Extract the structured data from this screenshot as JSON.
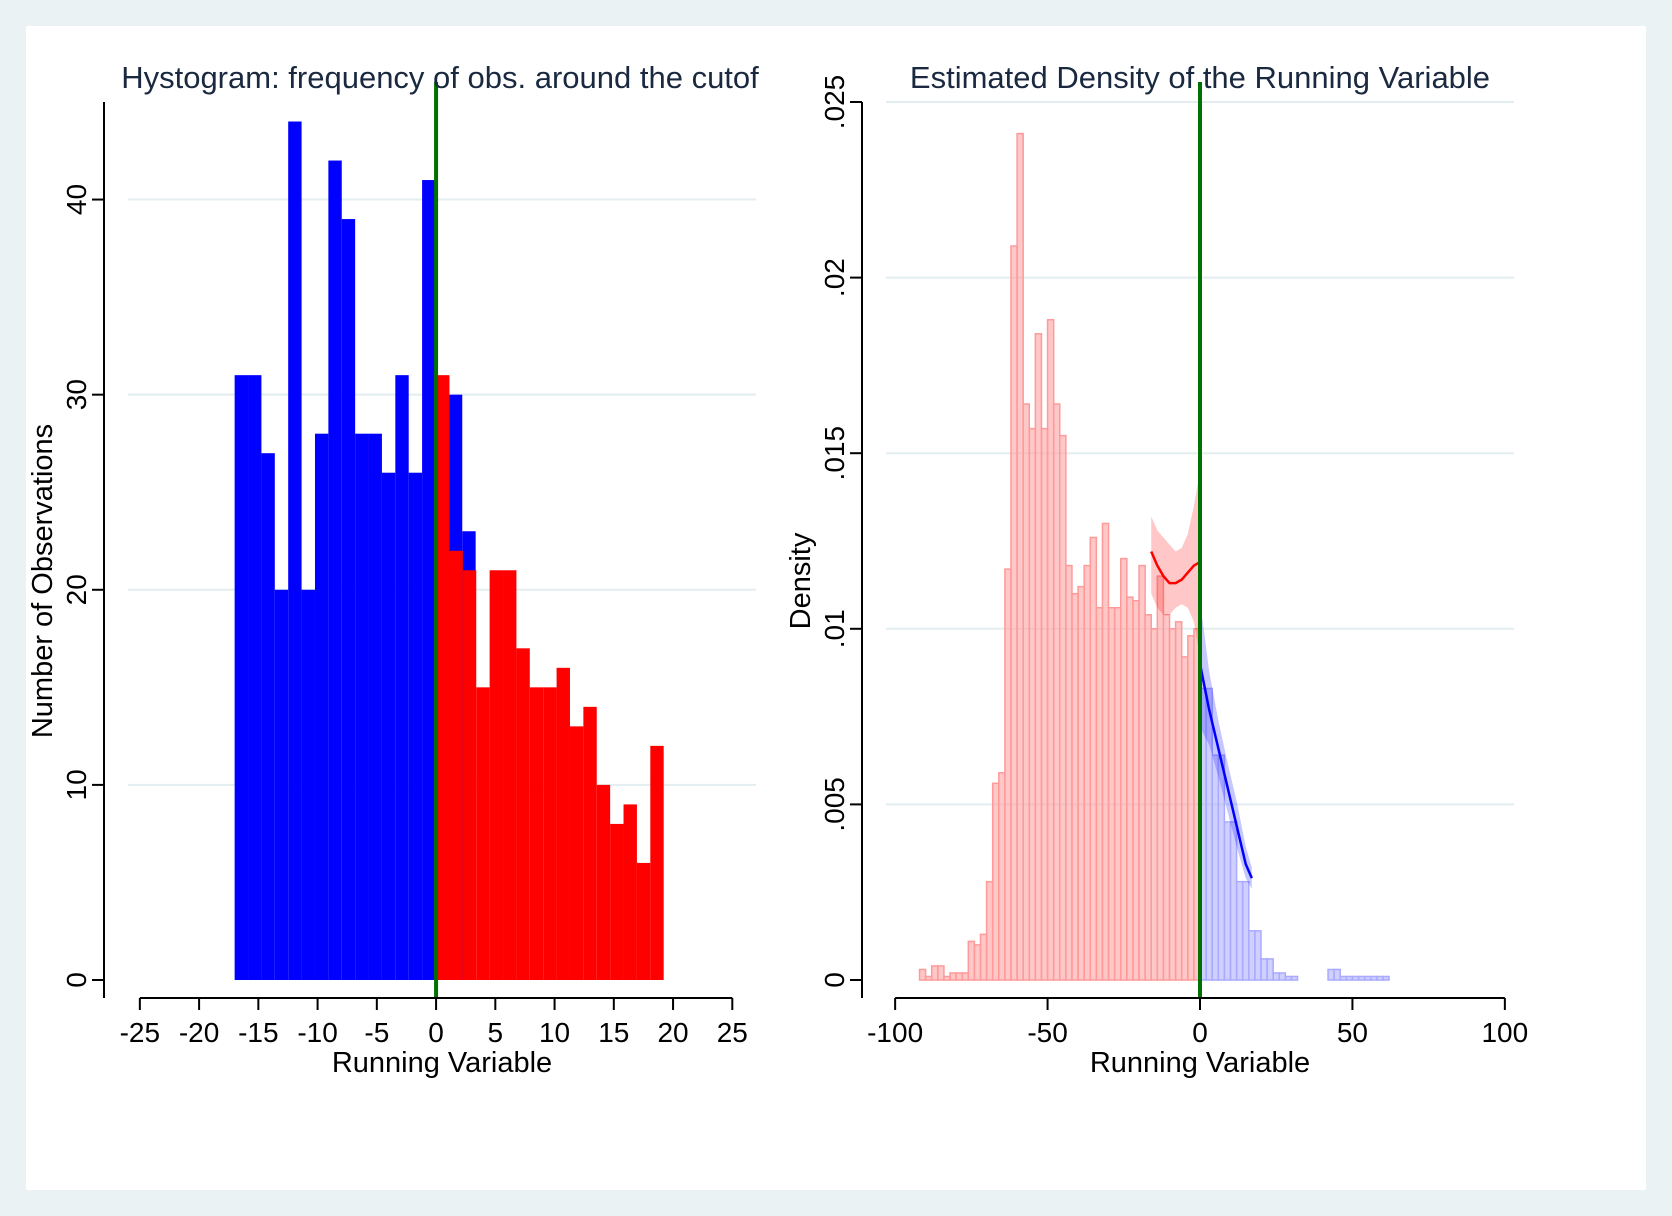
{
  "chart_data": [
    {
      "type": "bar",
      "title": "Hystogram: frequency of obs. around the cutof",
      "xlabel": "Running Variable",
      "ylabel": "Number of Observations",
      "xlim": [
        -26,
        27
      ],
      "ylim": [
        0,
        45
      ],
      "xticks": [
        -25,
        -20,
        -15,
        -10,
        -5,
        0,
        5,
        10,
        15,
        20,
        25
      ],
      "xtick_labels": [
        "-25",
        "-20",
        "-15",
        "-10",
        "-5",
        "0",
        "5",
        "10",
        "15",
        "20",
        "25"
      ],
      "yticks": [
        0,
        10,
        20,
        30,
        40
      ],
      "ytick_labels": [
        "0",
        "10",
        "20",
        "30",
        "40"
      ],
      "grid": true,
      "cutoff": 0,
      "bin_width": 1.13,
      "series": [
        {
          "color": "#0000ff",
          "bin_start": -17,
          "values": [
            31,
            31,
            27,
            20,
            44,
            20,
            28,
            42,
            39,
            28,
            28,
            26,
            31,
            26,
            41,
            28,
            30,
            23
          ]
        },
        {
          "color": "#ff0000",
          "bin_start": 0,
          "values": [
            31,
            22,
            21,
            15,
            21,
            21,
            17,
            15,
            15,
            16,
            13,
            14,
            10,
            8,
            9,
            6,
            12
          ]
        }
      ],
      "cutoff_color": "#007000"
    },
    {
      "type": "bar",
      "title": "Estimated Density of the Running Variable",
      "xlabel": "Running Variable",
      "ylabel": "Density",
      "xlim": [
        -103,
        103
      ],
      "ylim": [
        0,
        0.025
      ],
      "xticks": [
        -100,
        -50,
        0,
        50,
        100
      ],
      "xtick_labels": [
        "-100",
        "-50",
        "0",
        "50",
        "100"
      ],
      "yticks": [
        0,
        0.005,
        0.01,
        0.015,
        0.02,
        0.025
      ],
      "ytick_labels": [
        "0",
        ".005",
        ".01",
        ".015",
        ".02",
        ".025"
      ],
      "grid": true,
      "cutoff": 0,
      "bin_width": 2,
      "series": [
        {
          "color": "#ff9a9a",
          "bin_start": -92,
          "values": [
            0.0003,
            0.0001,
            0.0004,
            0.0004,
            0.0001,
            0.0002,
            0.0002,
            0.0002,
            0.0011,
            0.001,
            0.0013,
            0.0028,
            0.0056,
            0.0059,
            0.0117,
            0.0209,
            0.0241,
            0.0164,
            0.0157,
            0.0184,
            0.0157,
            0.0188,
            0.0164,
            0.0155,
            0.0118,
            0.011,
            0.0112,
            0.0118,
            0.0126,
            0.0106,
            0.013,
            0.0106,
            0.0106,
            0.012,
            0.0109,
            0.0108,
            0.0118,
            0.0104,
            0.01,
            0.0115,
            0.0104,
            0.01,
            0.0102,
            0.0092,
            0.0098,
            0.01
          ]
        },
        {
          "color": "#aaaaff",
          "bin_start": 0,
          "values": [
            0.0083,
            0.0083,
            0.0064,
            0.0064,
            0.0045,
            0.0045,
            0.0028,
            0.0028,
            0.0014,
            0.0014,
            0.0006,
            0.0006,
            0.0002,
            0.0002,
            0.0001,
            0.0001,
            0,
            0,
            0,
            0,
            0,
            0.0003,
            0.0003,
            0.0001,
            0.0001,
            0.0001,
            0.0001,
            0.0001,
            0.0001,
            0.0001,
            0.0001
          ]
        }
      ],
      "fit_left": {
        "color": "#ff0000",
        "x": [
          -16,
          -14,
          -12,
          -10,
          -8,
          -6,
          -4,
          -2,
          0
        ],
        "y": [
          0.0122,
          0.0118,
          0.0115,
          0.0113,
          0.0113,
          0.0114,
          0.0116,
          0.0118,
          0.0119
        ],
        "ci_lower": [
          0.011,
          0.0106,
          0.0104,
          0.0104,
          0.0106,
          0.0107,
          0.0106,
          0.0102,
          0.0092
        ],
        "ci_upper": [
          0.0132,
          0.0128,
          0.0126,
          0.0124,
          0.0122,
          0.0123,
          0.0127,
          0.0135,
          0.0145
        ]
      },
      "fit_right": {
        "color": "#0000ff",
        "x": [
          0,
          3,
          6,
          9,
          12,
          15,
          17
        ],
        "y": [
          0.009,
          0.0077,
          0.0066,
          0.0055,
          0.0044,
          0.0033,
          0.0029
        ],
        "ci_lower": [
          0.0072,
          0.0067,
          0.0058,
          0.0048,
          0.0038,
          0.0029,
          0.0026
        ],
        "ci_upper": [
          0.0108,
          0.0088,
          0.0074,
          0.0062,
          0.0051,
          0.0038,
          0.0032
        ]
      },
      "cutoff_color": "#007000"
    }
  ]
}
